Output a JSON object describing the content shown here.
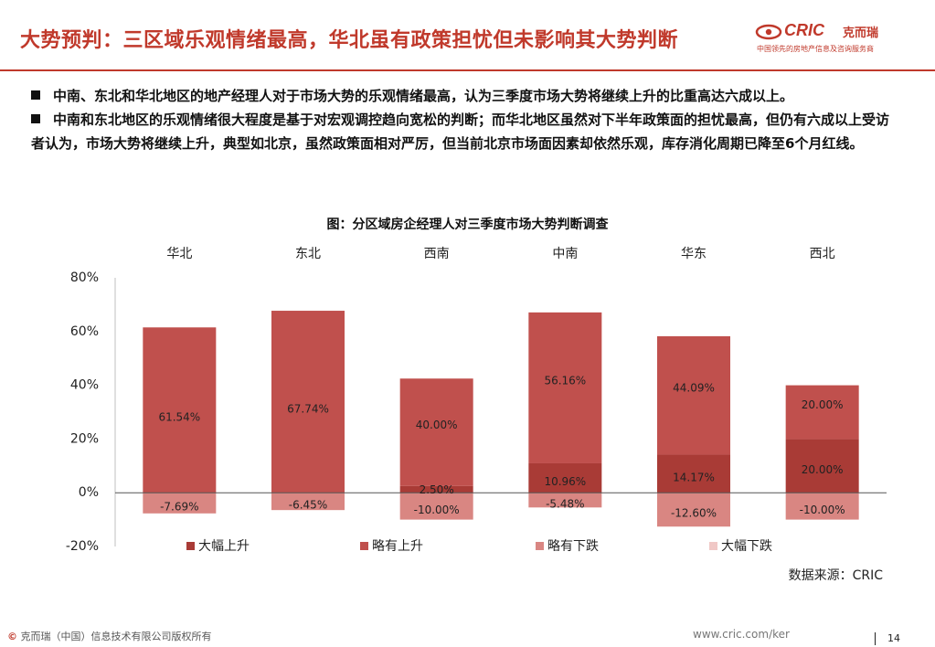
{
  "header": {
    "title": "大势预判：三区域乐观情绪最高，华北虽有政策担忧但未影响其大势判断",
    "logo_main": "CRIC",
    "logo_cn": "克而瑞",
    "logo_sub": "中国领先的房地产信息及咨询服务商"
  },
  "bullets": [
    "中南、东北和华北地区的地产经理人对于市场大势的乐观情绪最高，认为三季度市场大势将继续上升的比重高达六成以上。",
    "中南和东北地区的乐观情绪很大程度是基于对宏观调控趋向宽松的判断；而华北地区虽然对下半年政策面的担忧最高，但仍有六成以上受访者认为，市场大势将继续上升，典型如北京，虽然政策面相对严厉，但当前北京市场面因素却依然乐观，库存消化周期已降至6个月红线。"
  ],
  "chart_data": {
    "type": "bar",
    "stacked": true,
    "title": "图：分区域房企经理人对三季度市场大势判断调查",
    "categories": [
      "华北",
      "东北",
      "西南",
      "中南",
      "华东",
      "西北"
    ],
    "series": [
      {
        "name": "大幅上升",
        "color": "#A93B36",
        "values": [
          0,
          0,
          2.5,
          10.96,
          14.17,
          20.0
        ]
      },
      {
        "name": "略有上升",
        "color": "#C0504D",
        "values": [
          61.54,
          67.74,
          40.0,
          56.16,
          44.09,
          20.0
        ]
      },
      {
        "name": "略有下跌",
        "color": "#D98682",
        "values": [
          -7.69,
          -6.45,
          -10.0,
          -5.48,
          -12.6,
          -10.0
        ]
      },
      {
        "name": "大幅下跌",
        "color": "#F0C8C6",
        "values": [
          0,
          0,
          0,
          0,
          0,
          0
        ]
      }
    ],
    "data_labels": [
      {
        "series": "略有上升",
        "labels": [
          "61.54%",
          "67.74%",
          "40.00%",
          "56.16%",
          "44.09%",
          "20.00%"
        ]
      },
      {
        "series": "大幅上升",
        "labels": [
          null,
          null,
          "2.50%",
          "10.96%",
          "14.17%",
          "20.00%"
        ]
      },
      {
        "series": "略有下跌",
        "labels": [
          "-7.69%",
          "-6.45%",
          "-10.00%",
          "-5.48%",
          "-12.60%",
          "-10.00%"
        ]
      }
    ],
    "y_ticks": [
      "80%",
      "60%",
      "40%",
      "20%",
      "0%",
      "-20%"
    ],
    "ylim": [
      -20,
      80
    ],
    "category_axis_position": "top",
    "legend_position": "bottom"
  },
  "source": "数据来源：CRIC",
  "footer": {
    "copyright_symbol": "©",
    "copyright": "克而瑞（中国）信息技术有限公司版权所有",
    "url": "www.cric.com/ker",
    "page": "14"
  },
  "colors": {
    "accent": "#C0392B"
  }
}
